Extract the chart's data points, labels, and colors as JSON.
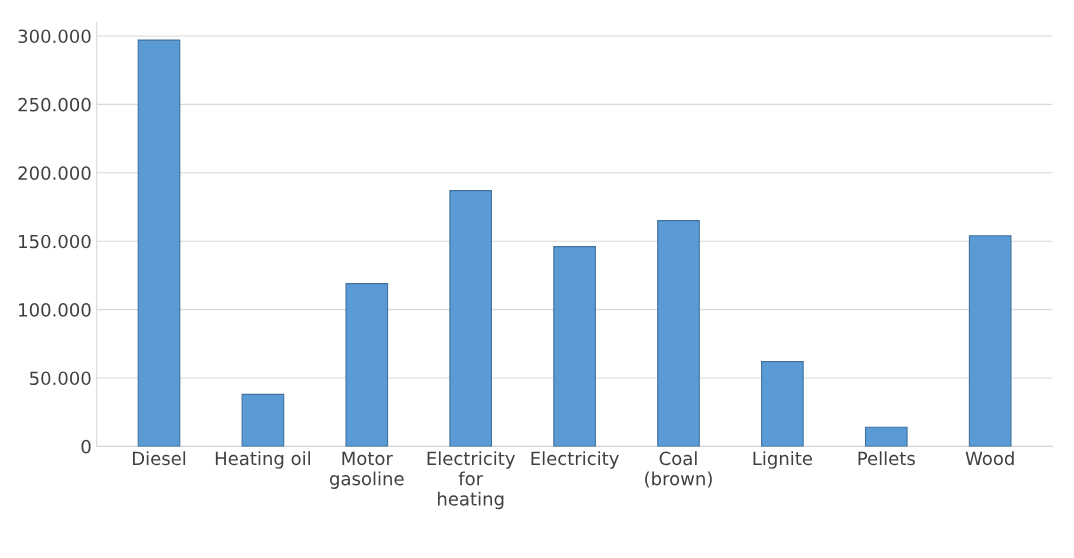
{
  "chart_data": {
    "type": "bar",
    "categories": [
      "Diesel",
      "Heating oil",
      "Motor gasoline",
      "Electricity for heating",
      "Electricity",
      "Coal (brown)",
      "Lignite",
      "Pellets",
      "Wood"
    ],
    "values": [
      297000,
      38000,
      119000,
      187000,
      146000,
      165000,
      62000,
      14000,
      154000
    ],
    "color": "#5b9bd5",
    "ylim": [
      0,
      310000
    ],
    "yticks": [
      {
        "value": 0,
        "label": "0"
      },
      {
        "value": 50000,
        "label": "50.000"
      },
      {
        "value": 100000,
        "label": "100.000"
      },
      {
        "value": 150000,
        "label": "150.000"
      },
      {
        "value": 200000,
        "label": "200.000"
      },
      {
        "value": 250000,
        "label": "250.000"
      },
      {
        "value": 300000,
        "label": "300.000"
      }
    ],
    "grid": "y"
  }
}
